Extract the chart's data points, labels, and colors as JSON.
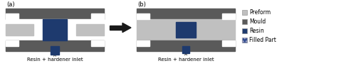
{
  "fig_width": 5.0,
  "fig_height": 0.93,
  "dpi": 100,
  "bg_color": "#ffffff",
  "mould_color": "#5a5a5a",
  "preform_color": "#c0c0c0",
  "resin_color": "#1e3a6e",
  "white_color": "#ffffff",
  "arrow_color": "#1a1a1a",
  "label_a": "(a)",
  "label_b": "(b)",
  "label_fontsize": 6.0,
  "annotation_text": "Resin + hardener inlet",
  "annotation_fontsize": 5.0,
  "legend_labels": [
    "Preform",
    "Mould",
    "Resin",
    "Filled Part"
  ],
  "legend_colors": [
    "#c0c0c0",
    "#5a5a5a",
    "#1e3a6e",
    "#2e4a8e"
  ],
  "legend_fontsize": 5.5
}
